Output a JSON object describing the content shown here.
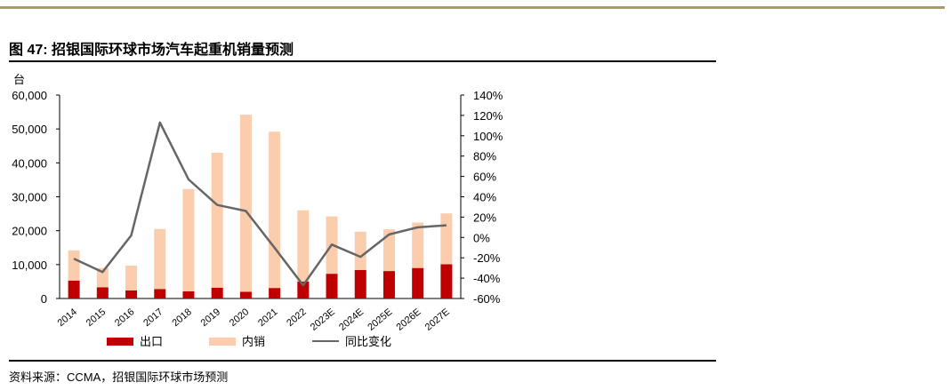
{
  "figure": {
    "title": "图 47: 招银国际环球市场汽车起重机销量预测",
    "source": "资料来源：CCMA，招银国际环球市场预测"
  },
  "chart_data": {
    "type": "bar",
    "categories": [
      "2014",
      "2015",
      "2016",
      "2017",
      "2018",
      "2019",
      "2020",
      "2021",
      "2022",
      "2023E",
      "2024E",
      "2025E",
      "2026E",
      "2027E"
    ],
    "series": [
      {
        "name": "出口",
        "kind": "stacked-bar",
        "axis": "left",
        "color": "#c00000",
        "values": [
          5300,
          3300,
          2400,
          2800,
          2100,
          3200,
          2000,
          3100,
          5000,
          7300,
          8400,
          8100,
          9000,
          10100
        ]
      },
      {
        "name": "内销",
        "kind": "stacked-bar",
        "axis": "left",
        "color": "#fbcdad",
        "values": [
          8900,
          5700,
          7300,
          17700,
          30200,
          39800,
          52200,
          46100,
          21000,
          16900,
          11300,
          12300,
          13400,
          15000
        ]
      },
      {
        "name": "同比变化",
        "kind": "line",
        "axis": "right",
        "color": "#666666",
        "values": [
          -21,
          -34,
          2,
          113,
          57,
          32,
          26,
          -10,
          -47,
          -7,
          -19,
          3,
          10,
          12
        ]
      }
    ],
    "y_left": {
      "label": "台",
      "min": 0,
      "max": 60000,
      "step": 10000,
      "ticks": [
        "0",
        "10,000",
        "20,000",
        "30,000",
        "40,000",
        "50,000",
        "60,000"
      ]
    },
    "y_right": {
      "min": -60,
      "max": 140,
      "step": 20,
      "ticks": [
        "-60%",
        "-40%",
        "-20%",
        "0%",
        "20%",
        "40%",
        "60%",
        "80%",
        "100%",
        "120%",
        "140%"
      ]
    },
    "legend": {
      "placement": "bottom",
      "items": [
        "出口",
        "内销",
        "同比变化"
      ]
    },
    "grid": false
  }
}
